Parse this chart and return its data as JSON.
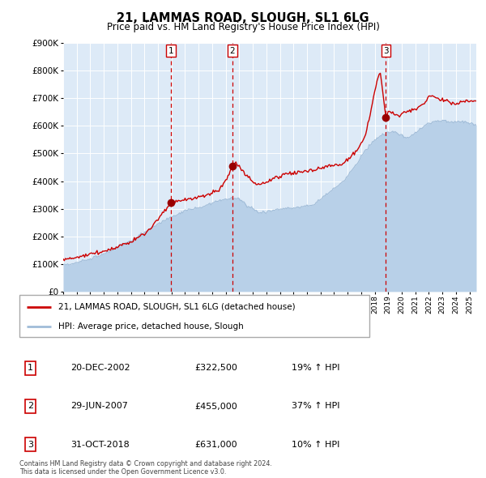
{
  "title1": "21, LAMMAS ROAD, SLOUGH, SL1 6LG",
  "title2": "Price paid vs. HM Land Registry's House Price Index (HPI)",
  "legend1": "21, LAMMAS ROAD, SLOUGH, SL1 6LG (detached house)",
  "legend2": "HPI: Average price, detached house, Slough",
  "footer": "Contains HM Land Registry data © Crown copyright and database right 2024.\nThis data is licensed under the Open Government Licence v3.0.",
  "transactions": [
    {
      "num": 1,
      "date": "20-DEC-2002",
      "price": 322500,
      "pct": "19%",
      "dir": "↑"
    },
    {
      "num": 2,
      "date": "29-JUN-2007",
      "price": 455000,
      "pct": "37%",
      "dir": "↑"
    },
    {
      "num": 3,
      "date": "31-OCT-2018",
      "price": 631000,
      "pct": "10%",
      "dir": "↑"
    }
  ],
  "transaction_dates": [
    2002.97,
    2007.49,
    2018.83
  ],
  "transaction_prices": [
    322500,
    455000,
    631000
  ],
  "ylim": [
    0,
    900000
  ],
  "yticks": [
    0,
    100000,
    200000,
    300000,
    400000,
    500000,
    600000,
    700000,
    800000,
    900000
  ],
  "hpi_color": "#b8d0e8",
  "hpi_line_color": "#a0bcd8",
  "property_color": "#cc0000",
  "dot_color": "#990000",
  "vline_color": "#cc0000",
  "bg_color": "#ddeaf7",
  "grid_color": "#ffffff",
  "xlim_start": 1995.0,
  "xlim_end": 2025.5
}
